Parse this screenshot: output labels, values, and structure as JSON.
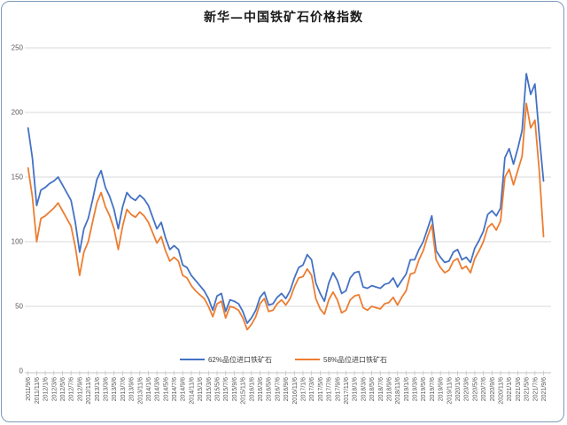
{
  "window": {
    "title": "新华—中国铁矿石价格指数"
  },
  "colors": {
    "series_62": "#4472c4",
    "series_58": "#ed7d31",
    "gridline": "#d9d9d9",
    "axis_line": "#c3c3c3",
    "axis_text": "#595959",
    "frame_border": "#7e99b8",
    "title_text": "#1a1a1a"
  },
  "chart_data": {
    "type": "line",
    "title": "新华—中国铁矿石价格指数",
    "xlabel": "",
    "ylabel": "",
    "ylim": [
      0,
      250
    ],
    "y_ticks": [
      0,
      50,
      100,
      150,
      200,
      250
    ],
    "grid": "horizontal",
    "legend_position": "bottom",
    "x_start": "2011/9/6",
    "x_end": "2021/9/6",
    "x_interval": "monthly (ticks labeled every 2 months)",
    "x_tick_labels": [
      "2011/9/6",
      "2011/11/6",
      "2012/1/6",
      "2012/3/6",
      "2012/5/6",
      "2012/7/6",
      "2012/9/6",
      "2012/11/6",
      "2013/1/6",
      "2013/3/6",
      "2013/5/6",
      "2013/7/6",
      "2013/9/6",
      "2013/11/6",
      "2014/1/6",
      "2014/3/6",
      "2014/5/6",
      "2014/7/6",
      "2014/9/6",
      "2014/11/6",
      "2015/1/6",
      "2015/3/6",
      "2015/5/6",
      "2015/7/6",
      "2015/9/6",
      "2015/11/6",
      "2016/1/6",
      "2016/3/6",
      "2016/5/6",
      "2016/7/6",
      "2016/9/6",
      "2016/11/6",
      "2017/1/6",
      "2017/3/6",
      "2017/5/6",
      "2017/7/6",
      "2017/9/6",
      "2017/11/6",
      "2018/1/6",
      "2018/3/6",
      "2018/5/6",
      "2018/7/6",
      "2018/9/6",
      "2018/11/6",
      "2019/1/6",
      "2019/3/6",
      "2019/5/6",
      "2019/7/6",
      "2019/9/6",
      "2019/11/6",
      "2020/1/6",
      "2020/3/6",
      "2020/5/6",
      "2020/7/6",
      "2020/9/6",
      "2020/11/6",
      "2021/1/6",
      "2021/3/6",
      "2021/5/6",
      "2021/7/6",
      "2021/9/6"
    ],
    "series": [
      {
        "name": "62%品位进口铁矿石",
        "color": "#4472c4",
        "values": [
          188,
          165,
          128,
          140,
          142,
          145,
          147,
          150,
          144,
          138,
          132,
          115,
          92,
          110,
          118,
          132,
          148,
          155,
          142,
          135,
          125,
          110,
          127,
          138,
          134,
          132,
          136,
          133,
          128,
          119,
          110,
          115,
          103,
          94,
          97,
          94,
          82,
          80,
          74,
          70,
          66,
          62,
          56,
          47,
          58,
          60,
          46,
          55,
          54,
          52,
          46,
          37,
          41,
          47,
          57,
          61,
          51,
          52,
          57,
          60,
          56,
          62,
          72,
          80,
          82,
          90,
          86,
          68,
          60,
          54,
          68,
          76,
          70,
          60,
          62,
          72,
          76,
          77,
          65,
          64,
          66,
          65,
          64,
          67,
          68,
          72,
          65,
          70,
          75,
          86,
          86,
          94,
          100,
          110,
          120,
          93,
          88,
          84,
          85,
          92,
          94,
          86,
          88,
          84,
          95,
          101,
          108,
          121,
          124,
          120,
          126,
          165,
          172,
          160,
          172,
          186,
          230,
          214,
          222,
          182,
          147
        ]
      },
      {
        "name": "58%品位进口铁矿石",
        "color": "#ed7d31",
        "values": [
          157,
          135,
          100,
          118,
          120,
          123,
          126,
          130,
          124,
          118,
          112,
          96,
          74,
          92,
          100,
          115,
          130,
          138,
          127,
          120,
          110,
          94,
          112,
          125,
          121,
          119,
          123,
          120,
          115,
          107,
          99,
          104,
          93,
          85,
          88,
          85,
          74,
          72,
          66,
          62,
          59,
          56,
          50,
          42,
          52,
          54,
          41,
          50,
          49,
          47,
          41,
          32,
          36,
          42,
          52,
          56,
          46,
          47,
          52,
          55,
          51,
          56,
          65,
          72,
          73,
          79,
          74,
          56,
          48,
          44,
          55,
          61,
          55,
          45,
          47,
          55,
          58,
          59,
          49,
          47,
          50,
          49,
          48,
          52,
          53,
          57,
          51,
          57,
          62,
          75,
          76,
          86,
          93,
          104,
          113,
          86,
          80,
          76,
          78,
          85,
          87,
          79,
          81,
          76,
          87,
          93,
          100,
          111,
          114,
          109,
          116,
          150,
          156,
          144,
          155,
          166,
          207,
          188,
          194,
          155,
          104
        ]
      }
    ]
  }
}
